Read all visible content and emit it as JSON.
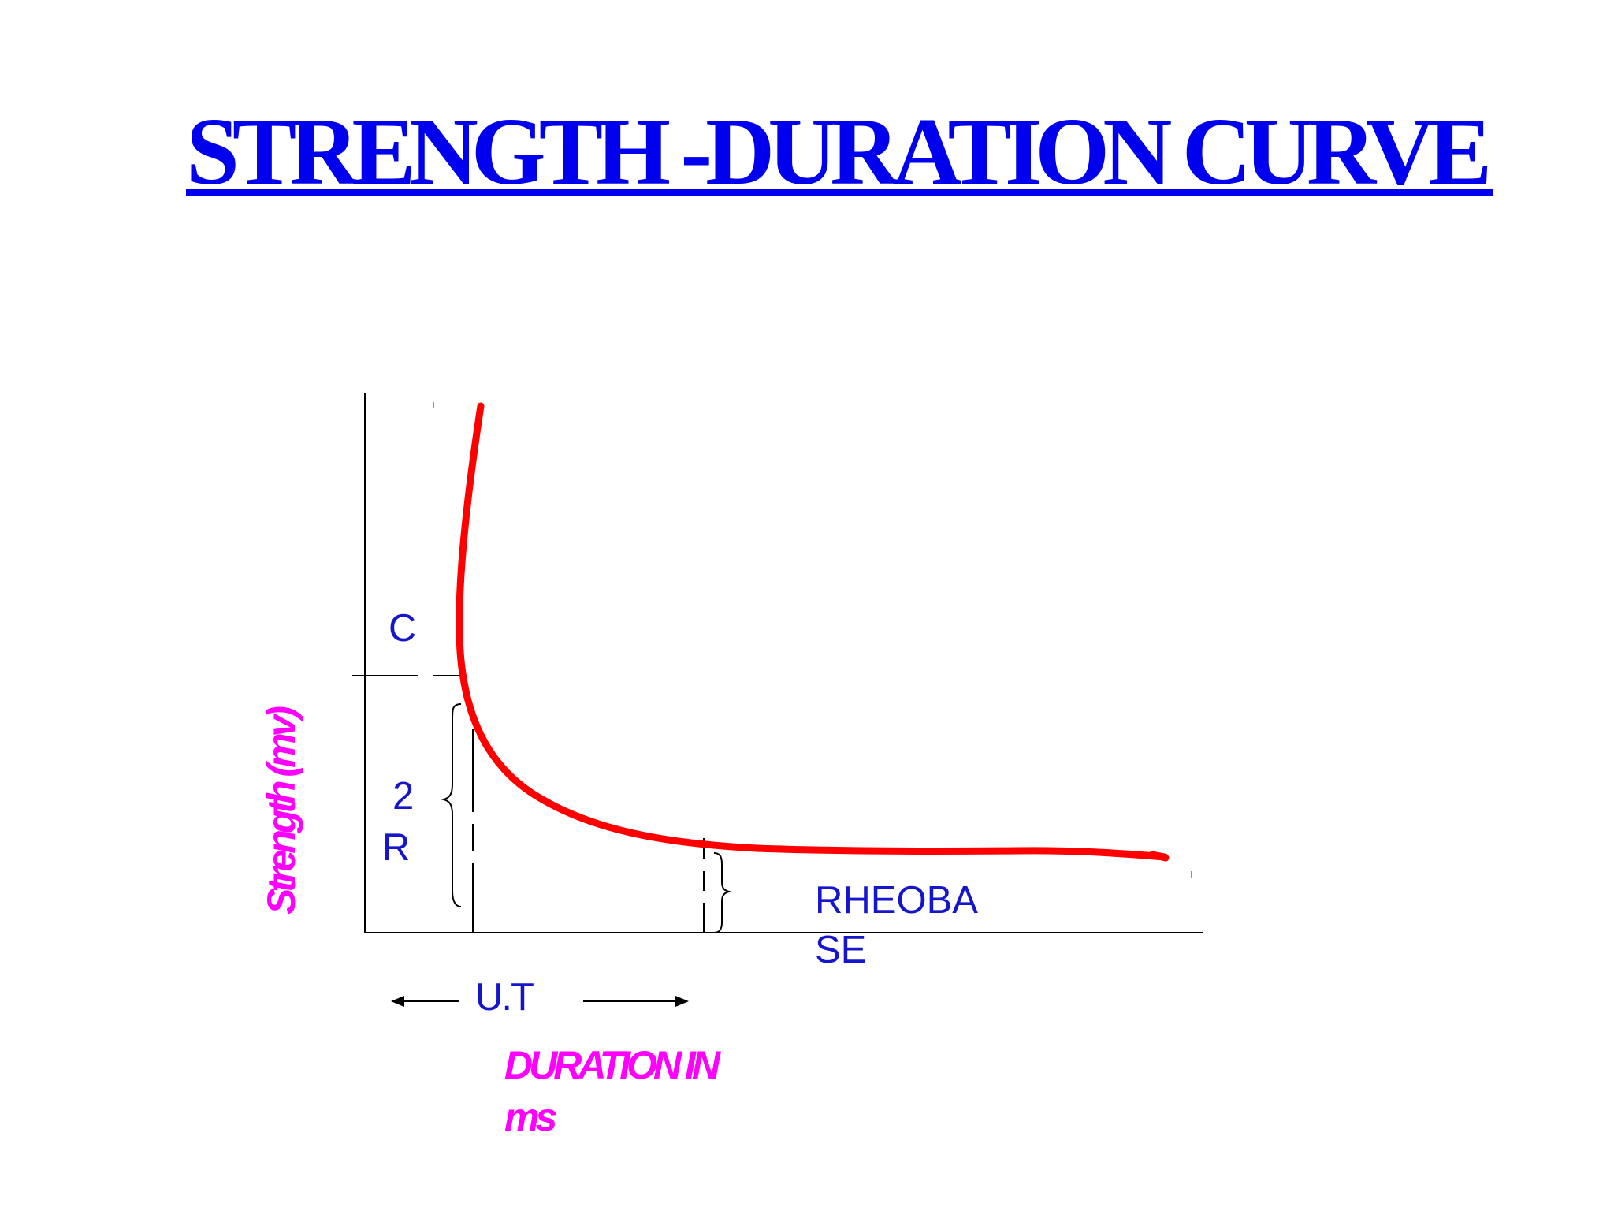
{
  "title": "STRENGTH -DURATION CURVE",
  "labels": {
    "c": "C",
    "two": "2",
    "r": "R",
    "ut": "U.T",
    "rheobase_line1": "RHEOBA",
    "rheobase_line2": "SE"
  },
  "axes": {
    "x_title_line1": "DURATION IN",
    "x_title_line2": "ms",
    "y_title": "Strength (mv)"
  },
  "colors": {
    "title": "#0000ee",
    "labels": "#1515cc",
    "axis_titles": "#ff00ff",
    "curve": "#ff0000",
    "lines": "#000000"
  }
}
